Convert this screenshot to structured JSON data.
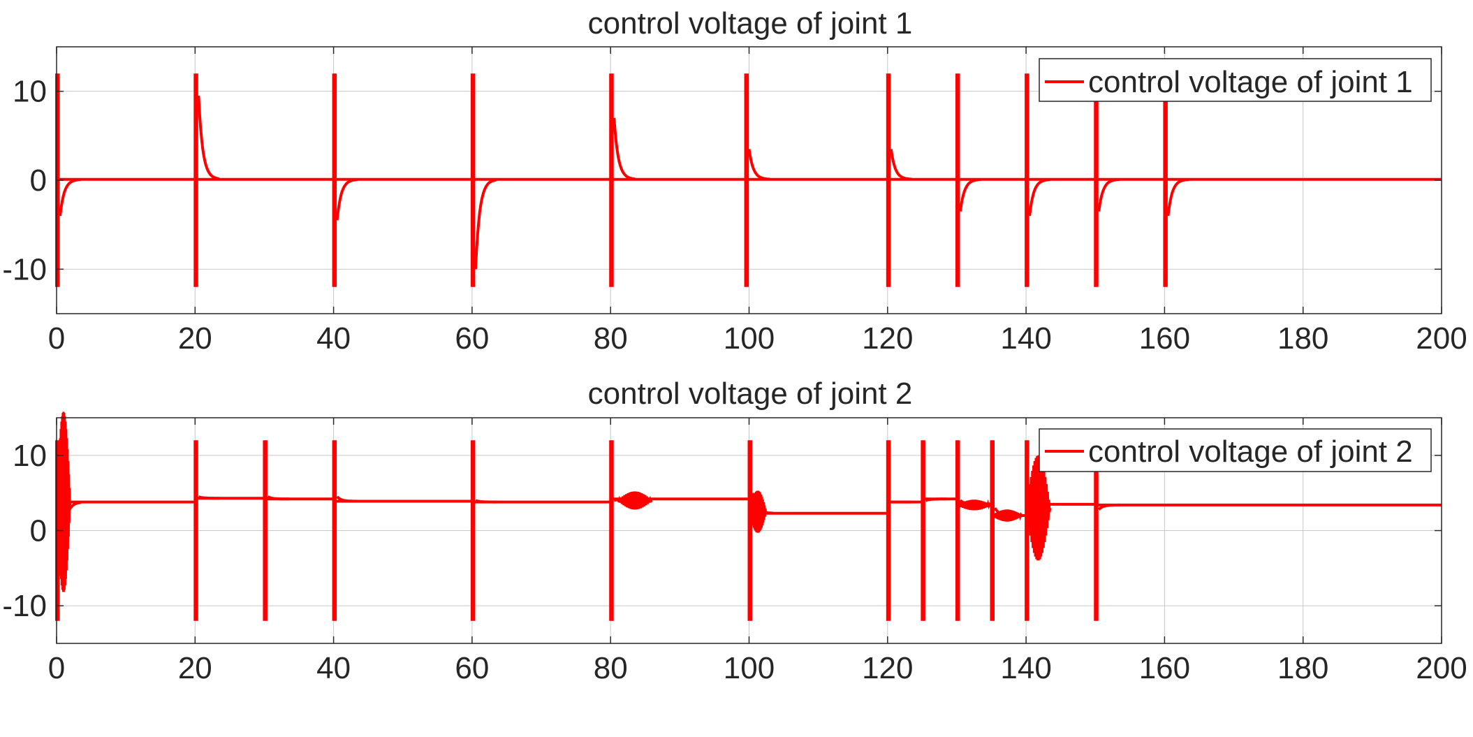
{
  "colors": {
    "series": "#ff0000",
    "axes": "#262626",
    "grid": "#c8c8c8",
    "background": "#ffffff"
  },
  "chart_data": [
    {
      "type": "line",
      "title": "control voltage of joint 1",
      "xlabel": "",
      "ylabel": "",
      "xlim": [
        0,
        200
      ],
      "ylim": [
        -15,
        15
      ],
      "xticks": [
        0,
        20,
        40,
        60,
        80,
        100,
        120,
        140,
        160,
        180,
        200
      ],
      "xtick_labels": [
        "0",
        "20",
        "40",
        "60",
        "80",
        "100",
        "120",
        "140",
        "160",
        "180",
        "200"
      ],
      "yticks": [
        -10,
        0,
        10
      ],
      "ytick_labels": [
        "-10",
        "0",
        "10"
      ],
      "grid": true,
      "legend": {
        "position": "top-right",
        "entries": [
          "control voltage of joint 1"
        ]
      },
      "baseline": 0.1,
      "spikes": [
        {
          "x": 0,
          "min": -12,
          "max": 12,
          "tail": -4
        },
        {
          "x": 20,
          "min": -12,
          "max": 12,
          "tail": 9.5
        },
        {
          "x": 40,
          "min": -12,
          "max": 12,
          "tail": -4.5
        },
        {
          "x": 60,
          "min": -12,
          "max": 12,
          "tail": -10
        },
        {
          "x": 80,
          "min": -12,
          "max": 12,
          "tail": 7
        },
        {
          "x": 99.5,
          "min": -12,
          "max": 12,
          "tail": 3.5
        },
        {
          "x": 120,
          "min": -12,
          "max": 12,
          "tail": 3.5
        },
        {
          "x": 130,
          "min": -12,
          "max": 12,
          "tail": -3.5
        },
        {
          "x": 140,
          "min": -12,
          "max": 12,
          "tail": -4
        },
        {
          "x": 150,
          "min": -12,
          "max": 10,
          "tail": -3.5
        },
        {
          "x": 160,
          "min": -12,
          "max": 10,
          "tail": -4
        }
      ],
      "levels": [
        {
          "from": 0,
          "to": 200,
          "y": 0.1
        }
      ],
      "oscillations": [],
      "series": [
        {
          "name": "control voltage of joint 1"
        }
      ]
    },
    {
      "type": "line",
      "title": "control voltage of joint 2",
      "xlabel": "",
      "ylabel": "",
      "xlim": [
        0,
        200
      ],
      "ylim": [
        -15,
        15
      ],
      "xticks": [
        0,
        20,
        40,
        60,
        80,
        100,
        120,
        140,
        160,
        180,
        200
      ],
      "xtick_labels": [
        "0",
        "20",
        "40",
        "60",
        "80",
        "100",
        "120",
        "140",
        "160",
        "180",
        "200"
      ],
      "yticks": [
        -10,
        0,
        10
      ],
      "ytick_labels": [
        "-10",
        "0",
        "10"
      ],
      "grid": true,
      "legend": {
        "position": "top-right",
        "entries": [
          "control voltage of joint 2"
        ]
      },
      "levels": [
        {
          "from": 0,
          "to": 20,
          "y": 3.8
        },
        {
          "from": 20,
          "to": 30,
          "y": 4.3
        },
        {
          "from": 30,
          "to": 40,
          "y": 4.2
        },
        {
          "from": 40,
          "to": 60,
          "y": 3.9
        },
        {
          "from": 60,
          "to": 80,
          "y": 3.8
        },
        {
          "from": 80,
          "to": 100,
          "y": 4.2
        },
        {
          "from": 100,
          "to": 120,
          "y": 2.3
        },
        {
          "from": 120,
          "to": 125,
          "y": 3.8
        },
        {
          "from": 125,
          "to": 130,
          "y": 4.2
        },
        {
          "from": 130,
          "to": 135,
          "y": 3.5
        },
        {
          "from": 135,
          "to": 140,
          "y": 2.0
        },
        {
          "from": 140,
          "to": 150,
          "y": 3.5
        },
        {
          "from": 150,
          "to": 200,
          "y": 3.4
        }
      ],
      "spikes": [
        {
          "x": 0,
          "min": -12,
          "max": 12,
          "tail": -6
        },
        {
          "x": 20,
          "min": -12,
          "max": 12,
          "tail": 4.5
        },
        {
          "x": 30,
          "min": -12,
          "max": 12,
          "tail": 4.5
        },
        {
          "x": 40,
          "min": -12,
          "max": 12,
          "tail": 4.5
        },
        {
          "x": 60,
          "min": -12,
          "max": 12,
          "tail": 4
        },
        {
          "x": 80,
          "min": -12,
          "max": 12,
          "tail": 4
        },
        {
          "x": 100,
          "min": -12,
          "max": 12,
          "tail": 5
        },
        {
          "x": 120,
          "min": -12,
          "max": 12,
          "tail": 3.8
        },
        {
          "x": 125,
          "min": -12,
          "max": 12,
          "tail": 4
        },
        {
          "x": 130,
          "min": -12,
          "max": 12,
          "tail": 4
        },
        {
          "x": 135,
          "min": -12,
          "max": 12,
          "tail": 3
        },
        {
          "x": 140,
          "min": -12,
          "max": 12,
          "tail": 4
        },
        {
          "x": 150,
          "min": -12,
          "max": 8,
          "tail": 2.8
        }
      ],
      "oscillations": [
        {
          "from": 0,
          "to": 2,
          "center": 3.8,
          "amp": 12
        },
        {
          "from": 81,
          "to": 86,
          "center": 4.0,
          "amp": 1.2
        },
        {
          "from": 100,
          "to": 102.5,
          "center": 2.5,
          "amp": 2.8
        },
        {
          "from": 130,
          "to": 135,
          "center": 3.4,
          "amp": 0.7
        },
        {
          "from": 135,
          "to": 139.5,
          "center": 2.0,
          "amp": 0.8
        },
        {
          "from": 140,
          "to": 143.5,
          "center": 3.0,
          "amp": 7
        }
      ],
      "series": [
        {
          "name": "control voltage of joint 2"
        }
      ]
    }
  ]
}
